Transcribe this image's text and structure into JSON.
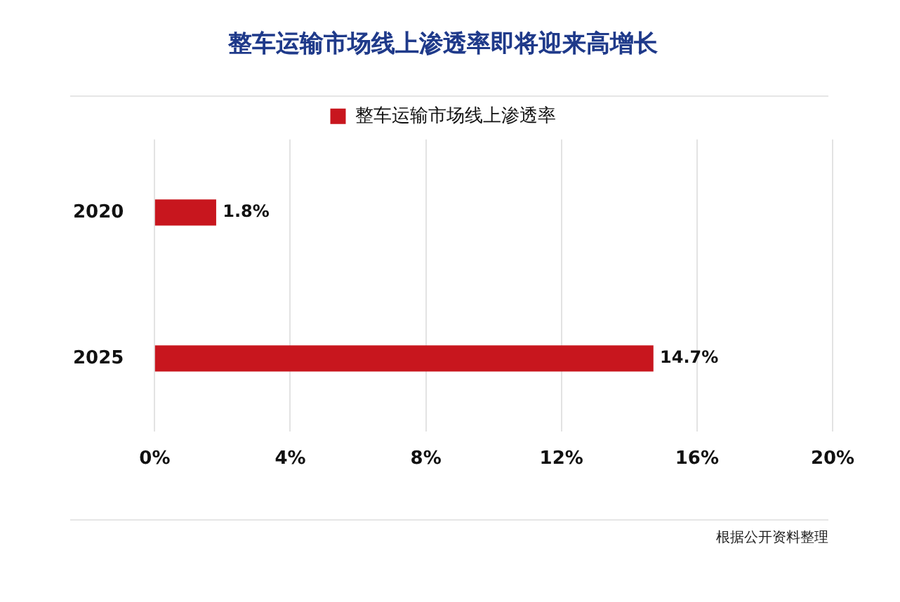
{
  "chart_data": {
    "type": "bar",
    "orientation": "horizontal",
    "title": "整车运输市场线上渗透率即将迎来高增长",
    "categories": [
      "2020",
      "2025"
    ],
    "series": [
      {
        "name": "整车运输市场线上渗透率",
        "color": "#c8161e",
        "values": [
          1.8,
          14.7
        ]
      }
    ],
    "xlim": [
      0,
      20
    ],
    "xticks": [
      {
        "value": 0,
        "label": "0%"
      },
      {
        "value": 4,
        "label": "4%"
      },
      {
        "value": 8,
        "label": "8%"
      },
      {
        "value": 12,
        "label": "12%"
      },
      {
        "value": 16,
        "label": "16%"
      },
      {
        "value": 20,
        "label": "20%"
      }
    ],
    "value_labels": [
      "1.8%",
      "14.7%"
    ],
    "grid": "x",
    "legend": "top",
    "annotations": [
      "根据公开资料整理"
    ]
  }
}
